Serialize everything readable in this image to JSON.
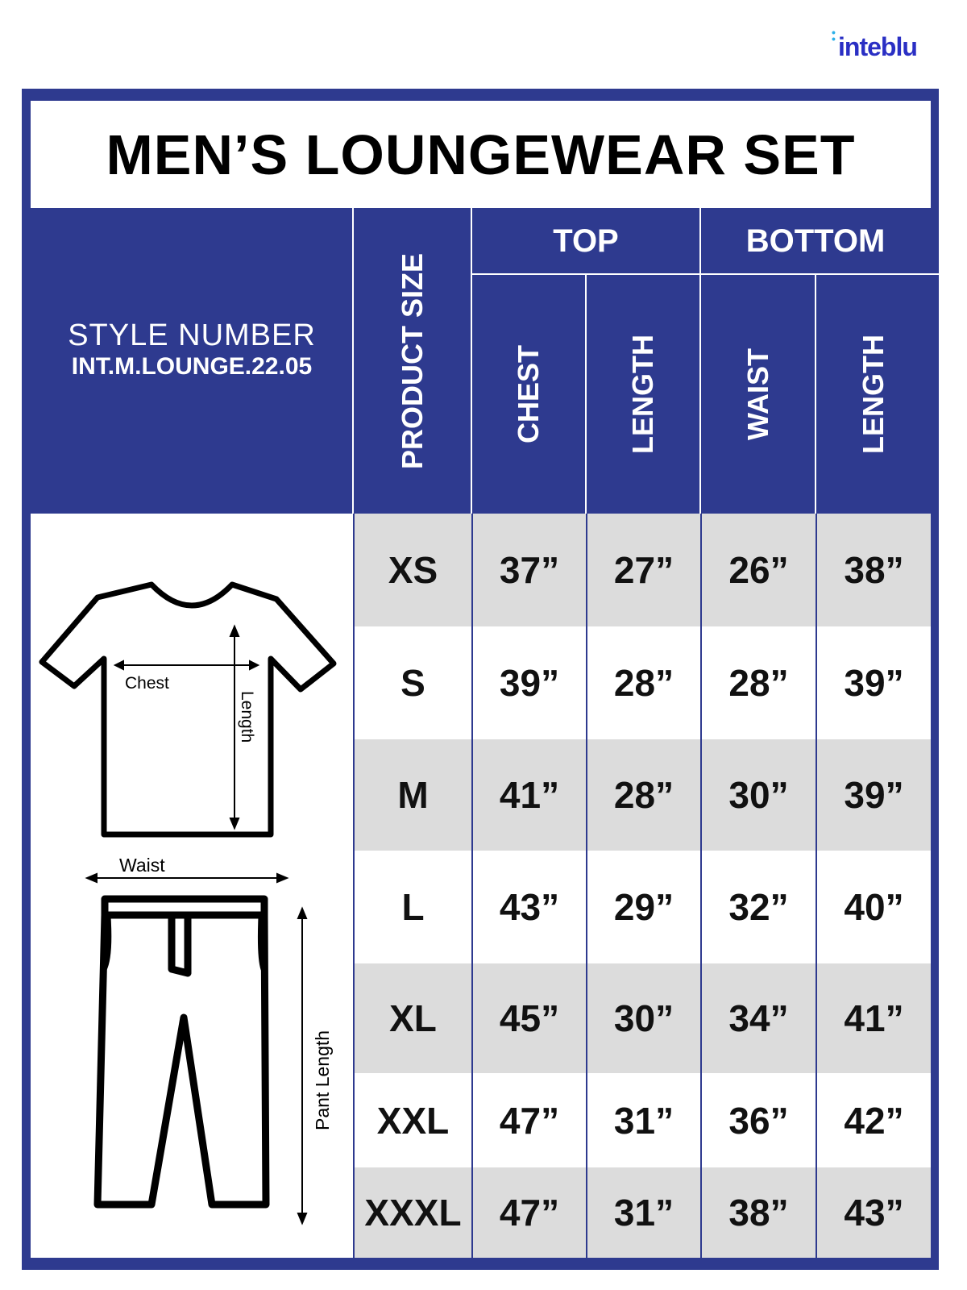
{
  "brand": {
    "logo": "inteblu"
  },
  "title": "MEN’S LOUNGEWEAR SET",
  "style": {
    "label": "STYLE NUMBER",
    "number": "INT.M.LOUNGE.22.05"
  },
  "headers": {
    "product_size": "PRODUCT SIZE",
    "top": "TOP",
    "bottom": "BOTTOM",
    "chest": "CHEST",
    "top_length": "LENGTH",
    "waist": "WAIST",
    "bottom_length": "LENGTH"
  },
  "illustration": {
    "chest": "Chest",
    "length": "Length",
    "waist": "Waist",
    "pant_length": "Pant Length"
  },
  "rows": [
    {
      "size": "XS",
      "chest": "37”",
      "top_length": "27”",
      "waist": "26”",
      "bottom_length": "38”"
    },
    {
      "size": "S",
      "chest": "39”",
      "top_length": "28”",
      "waist": "28”",
      "bottom_length": "39”"
    },
    {
      "size": "M",
      "chest": "41”",
      "top_length": "28”",
      "waist": "30”",
      "bottom_length": "39”"
    },
    {
      "size": "L",
      "chest": "43”",
      "top_length": "29”",
      "waist": "32”",
      "bottom_length": "40”"
    },
    {
      "size": "XL",
      "chest": "45”",
      "top_length": "30”",
      "waist": "34”",
      "bottom_length": "41”"
    },
    {
      "size": "XXL",
      "chest": "47”",
      "top_length": "31”",
      "waist": "36”",
      "bottom_length": "42”"
    },
    {
      "size": "XXXL",
      "chest": "47”",
      "top_length": "31”",
      "waist": "38”",
      "bottom_length": "43”"
    }
  ],
  "colors": {
    "brand_blue": "#2e3a8f",
    "row_gray": "#dcdcdc",
    "logo_blue": "#2a2fc4"
  }
}
